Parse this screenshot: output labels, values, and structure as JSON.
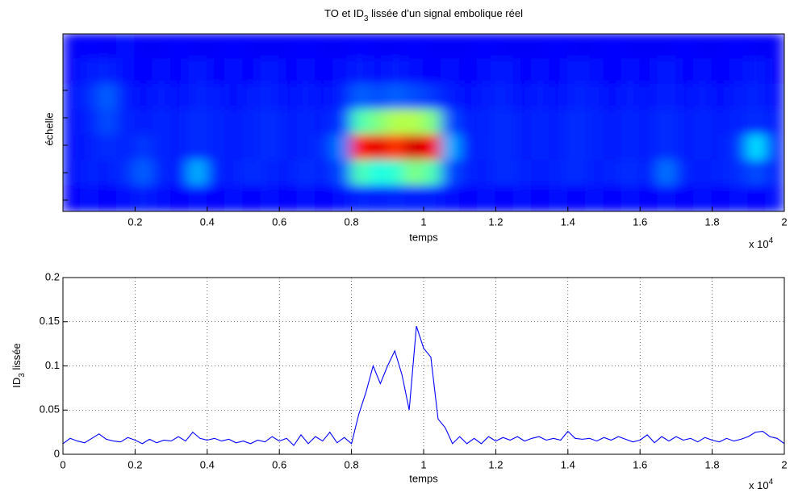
{
  "chart_data": [
    {
      "type": "heatmap",
      "title": [
        "TO et ID",
        "3",
        " lissée d’un signal embolique réel"
      ],
      "ylabel": "échelle",
      "xlabel": "temps",
      "x_exponent": [
        "x 10",
        "4"
      ],
      "xlim": [
        0,
        2
      ],
      "xticks": [
        0.2,
        0.4,
        0.6,
        0.8,
        1,
        1.2,
        1.4,
        1.6,
        1.8,
        2
      ],
      "colormap": "jet",
      "values": [
        [
          0.12,
          0.13,
          0.12,
          0.14,
          0.12,
          0.12,
          0.13,
          0.12,
          0.12,
          0.13,
          0.12,
          0.12,
          0.12,
          0.13,
          0.12,
          0.12,
          0.13,
          0.12,
          0.12,
          0.13,
          0.12,
          0.12,
          0.12,
          0.13,
          0.12,
          0.12,
          0.12,
          0.13,
          0.12,
          0.12,
          0.13,
          0.12,
          0.12,
          0.12,
          0.13,
          0.12,
          0.12,
          0.13,
          0.12,
          0.12
        ],
        [
          0.13,
          0.15,
          0.16,
          0.14,
          0.13,
          0.14,
          0.13,
          0.15,
          0.13,
          0.14,
          0.13,
          0.15,
          0.13,
          0.14,
          0.13,
          0.14,
          0.15,
          0.14,
          0.15,
          0.14,
          0.13,
          0.14,
          0.13,
          0.14,
          0.15,
          0.13,
          0.14,
          0.13,
          0.15,
          0.14,
          0.13,
          0.14,
          0.13,
          0.15,
          0.13,
          0.14,
          0.13,
          0.14,
          0.15,
          0.13
        ],
        [
          0.14,
          0.17,
          0.22,
          0.15,
          0.14,
          0.15,
          0.14,
          0.16,
          0.15,
          0.14,
          0.15,
          0.16,
          0.14,
          0.15,
          0.14,
          0.16,
          0.22,
          0.2,
          0.22,
          0.2,
          0.18,
          0.15,
          0.14,
          0.15,
          0.16,
          0.14,
          0.15,
          0.14,
          0.16,
          0.15,
          0.14,
          0.15,
          0.14,
          0.16,
          0.14,
          0.15,
          0.14,
          0.15,
          0.16,
          0.14
        ],
        [
          0.14,
          0.16,
          0.2,
          0.16,
          0.15,
          0.16,
          0.15,
          0.17,
          0.16,
          0.15,
          0.16,
          0.17,
          0.15,
          0.16,
          0.15,
          0.18,
          0.45,
          0.5,
          0.55,
          0.55,
          0.5,
          0.2,
          0.15,
          0.16,
          0.17,
          0.15,
          0.16,
          0.15,
          0.17,
          0.16,
          0.15,
          0.16,
          0.15,
          0.17,
          0.15,
          0.16,
          0.15,
          0.16,
          0.17,
          0.15
        ],
        [
          0.14,
          0.15,
          0.17,
          0.16,
          0.18,
          0.16,
          0.15,
          0.17,
          0.16,
          0.15,
          0.16,
          0.17,
          0.15,
          0.16,
          0.17,
          0.25,
          0.85,
          0.9,
          0.82,
          0.92,
          0.88,
          0.3,
          0.16,
          0.16,
          0.17,
          0.15,
          0.16,
          0.15,
          0.17,
          0.16,
          0.15,
          0.16,
          0.15,
          0.17,
          0.15,
          0.16,
          0.15,
          0.18,
          0.35,
          0.16
        ],
        [
          0.14,
          0.16,
          0.15,
          0.17,
          0.22,
          0.16,
          0.15,
          0.3,
          0.16,
          0.15,
          0.17,
          0.16,
          0.15,
          0.17,
          0.16,
          0.2,
          0.45,
          0.4,
          0.42,
          0.5,
          0.45,
          0.2,
          0.16,
          0.15,
          0.17,
          0.16,
          0.15,
          0.16,
          0.17,
          0.15,
          0.16,
          0.17,
          0.15,
          0.24,
          0.16,
          0.15,
          0.16,
          0.17,
          0.2,
          0.16
        ],
        [
          0.13,
          0.14,
          0.13,
          0.14,
          0.15,
          0.14,
          0.13,
          0.14,
          0.13,
          0.14,
          0.13,
          0.14,
          0.13,
          0.14,
          0.13,
          0.14,
          0.16,
          0.15,
          0.16,
          0.15,
          0.15,
          0.14,
          0.13,
          0.14,
          0.13,
          0.14,
          0.13,
          0.14,
          0.13,
          0.14,
          0.13,
          0.14,
          0.13,
          0.14,
          0.13,
          0.14,
          0.13,
          0.14,
          0.13,
          0.14
        ]
      ]
    },
    {
      "type": "line",
      "xlabel": "temps",
      "ylabel": [
        "ID",
        "3",
        " lissée"
      ],
      "x_exponent": [
        "x 10",
        "4"
      ],
      "xlim": [
        0,
        2
      ],
      "ylim": [
        0,
        0.2
      ],
      "xticks": [
        0,
        0.2,
        0.4,
        0.6,
        0.8,
        1,
        1.2,
        1.4,
        1.6,
        1.8,
        2
      ],
      "yticks": [
        0,
        0.05,
        0.1,
        0.15,
        0.2
      ],
      "grid": true,
      "x": [
        0,
        0.02,
        0.04,
        0.06,
        0.08,
        0.1,
        0.12,
        0.14,
        0.16,
        0.18,
        0.2,
        0.22,
        0.24,
        0.26,
        0.28,
        0.3,
        0.32,
        0.34,
        0.36,
        0.38,
        0.4,
        0.42,
        0.44,
        0.46,
        0.48,
        0.5,
        0.52,
        0.54,
        0.56,
        0.58,
        0.6,
        0.62,
        0.64,
        0.66,
        0.68,
        0.7,
        0.72,
        0.74,
        0.76,
        0.78,
        0.8,
        0.82,
        0.84,
        0.86,
        0.88,
        0.9,
        0.92,
        0.94,
        0.96,
        0.98,
        1,
        1.02,
        1.04,
        1.06,
        1.08,
        1.1,
        1.12,
        1.14,
        1.16,
        1.18,
        1.2,
        1.22,
        1.24,
        1.26,
        1.28,
        1.3,
        1.32,
        1.34,
        1.36,
        1.38,
        1.4,
        1.42,
        1.44,
        1.46,
        1.48,
        1.5,
        1.52,
        1.54,
        1.56,
        1.58,
        1.6,
        1.62,
        1.64,
        1.66,
        1.68,
        1.7,
        1.72,
        1.74,
        1.76,
        1.78,
        1.8,
        1.82,
        1.84,
        1.86,
        1.88,
        1.9,
        1.92,
        1.94,
        1.96,
        1.98,
        2
      ],
      "series": [
        {
          "color": "#0000ff",
          "values": [
            0.012,
            0.018,
            0.015,
            0.013,
            0.018,
            0.023,
            0.017,
            0.015,
            0.014,
            0.019,
            0.016,
            0.012,
            0.017,
            0.013,
            0.016,
            0.015,
            0.02,
            0.015,
            0.025,
            0.018,
            0.016,
            0.018,
            0.015,
            0.017,
            0.013,
            0.015,
            0.012,
            0.016,
            0.014,
            0.02,
            0.015,
            0.018,
            0.01,
            0.022,
            0.012,
            0.02,
            0.015,
            0.025,
            0.013,
            0.019,
            0.012,
            0.045,
            0.07,
            0.1,
            0.08,
            0.1,
            0.117,
            0.09,
            0.05,
            0.145,
            0.12,
            0.11,
            0.04,
            0.03,
            0.012,
            0.02,
            0.012,
            0.018,
            0.012,
            0.02,
            0.015,
            0.019,
            0.016,
            0.02,
            0.015,
            0.018,
            0.02,
            0.016,
            0.018,
            0.016,
            0.026,
            0.018,
            0.017,
            0.018,
            0.015,
            0.019,
            0.016,
            0.02,
            0.017,
            0.014,
            0.016,
            0.022,
            0.013,
            0.02,
            0.015,
            0.02,
            0.016,
            0.018,
            0.014,
            0.019,
            0.016,
            0.014,
            0.018,
            0.015,
            0.017,
            0.02,
            0.025,
            0.026,
            0.02,
            0.018,
            0.012
          ]
        }
      ]
    }
  ]
}
